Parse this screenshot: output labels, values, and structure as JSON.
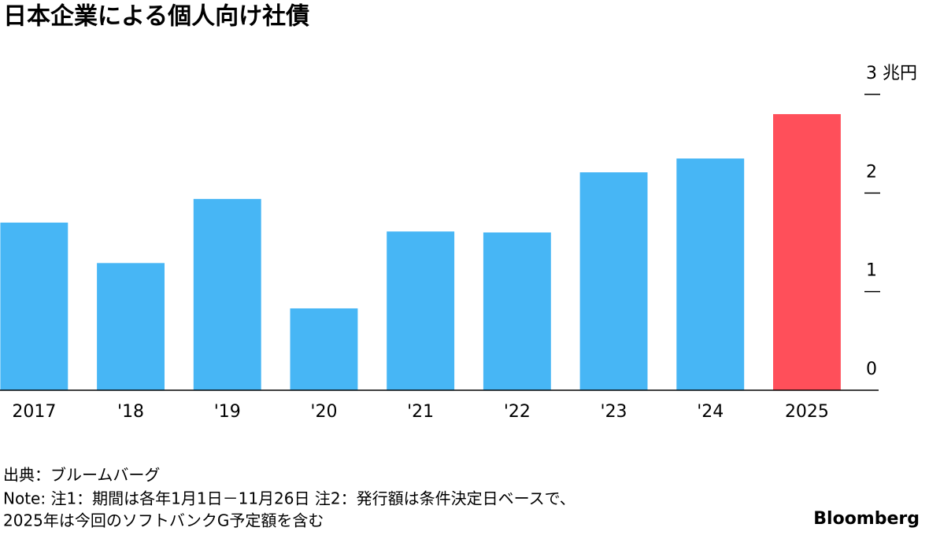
{
  "chart_data": {
    "type": "bar",
    "title": "日本企業による個人向け社債",
    "categories": [
      "2017",
      "'18",
      "'19",
      "'20",
      "'21",
      "'22",
      "'23",
      "'24",
      "2025"
    ],
    "values": [
      1.7,
      1.29,
      1.94,
      0.83,
      1.61,
      1.6,
      2.21,
      2.35,
      2.8
    ],
    "colors": [
      "#47b6f5",
      "#47b6f5",
      "#47b6f5",
      "#47b6f5",
      "#47b6f5",
      "#47b6f5",
      "#47b6f5",
      "#47b6f5",
      "#ff4f5a"
    ],
    "ylim": [
      0,
      3
    ],
    "yticks": [
      0,
      1,
      2,
      {
        "value": 3,
        "label": "3 兆円"
      }
    ],
    "source": "出典：ブルームバーグ",
    "notes": [
      "Note: 注1：期間は各年1月1日－11月26日 注2：発行額は条件決定日ベースで、",
      "2025年は今回のソフトバンクG予定額を含む"
    ],
    "brand": "Bloomberg"
  }
}
